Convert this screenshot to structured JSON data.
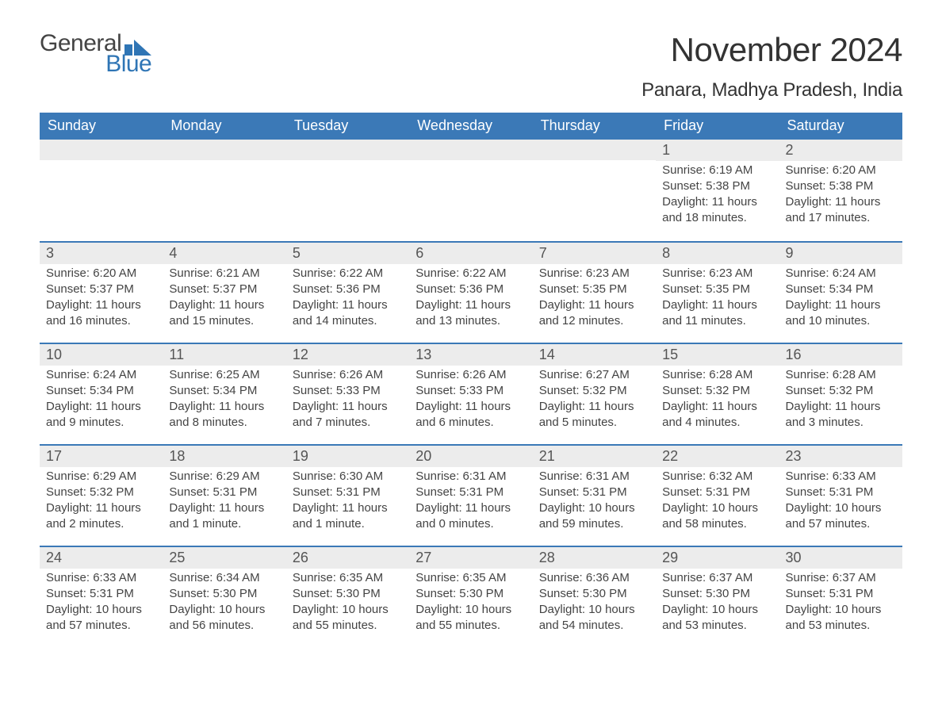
{
  "brand": {
    "word1": "General",
    "word2": "Blue",
    "icon_color": "#2f75b5",
    "text_color_1": "#444444",
    "text_color_2": "#2f75b5"
  },
  "title": "November 2024",
  "subtitle": "Panara, Madhya Pradesh, India",
  "colors": {
    "header_bg": "#3b79b7",
    "header_text": "#ffffff",
    "row_border": "#3b79b7",
    "daynum_bg": "#ececec",
    "body_text": "#444444",
    "page_bg": "#ffffff"
  },
  "day_names": [
    "Sunday",
    "Monday",
    "Tuesday",
    "Wednesday",
    "Thursday",
    "Friday",
    "Saturday"
  ],
  "weeks": [
    [
      {
        "empty": true
      },
      {
        "empty": true
      },
      {
        "empty": true
      },
      {
        "empty": true
      },
      {
        "empty": true
      },
      {
        "day": "1",
        "sunrise": "Sunrise: 6:19 AM",
        "sunset": "Sunset: 5:38 PM",
        "daylight": "Daylight: 11 hours and 18 minutes."
      },
      {
        "day": "2",
        "sunrise": "Sunrise: 6:20 AM",
        "sunset": "Sunset: 5:38 PM",
        "daylight": "Daylight: 11 hours and 17 minutes."
      }
    ],
    [
      {
        "day": "3",
        "sunrise": "Sunrise: 6:20 AM",
        "sunset": "Sunset: 5:37 PM",
        "daylight": "Daylight: 11 hours and 16 minutes."
      },
      {
        "day": "4",
        "sunrise": "Sunrise: 6:21 AM",
        "sunset": "Sunset: 5:37 PM",
        "daylight": "Daylight: 11 hours and 15 minutes."
      },
      {
        "day": "5",
        "sunrise": "Sunrise: 6:22 AM",
        "sunset": "Sunset: 5:36 PM",
        "daylight": "Daylight: 11 hours and 14 minutes."
      },
      {
        "day": "6",
        "sunrise": "Sunrise: 6:22 AM",
        "sunset": "Sunset: 5:36 PM",
        "daylight": "Daylight: 11 hours and 13 minutes."
      },
      {
        "day": "7",
        "sunrise": "Sunrise: 6:23 AM",
        "sunset": "Sunset: 5:35 PM",
        "daylight": "Daylight: 11 hours and 12 minutes."
      },
      {
        "day": "8",
        "sunrise": "Sunrise: 6:23 AM",
        "sunset": "Sunset: 5:35 PM",
        "daylight": "Daylight: 11 hours and 11 minutes."
      },
      {
        "day": "9",
        "sunrise": "Sunrise: 6:24 AM",
        "sunset": "Sunset: 5:34 PM",
        "daylight": "Daylight: 11 hours and 10 minutes."
      }
    ],
    [
      {
        "day": "10",
        "sunrise": "Sunrise: 6:24 AM",
        "sunset": "Sunset: 5:34 PM",
        "daylight": "Daylight: 11 hours and 9 minutes."
      },
      {
        "day": "11",
        "sunrise": "Sunrise: 6:25 AM",
        "sunset": "Sunset: 5:34 PM",
        "daylight": "Daylight: 11 hours and 8 minutes."
      },
      {
        "day": "12",
        "sunrise": "Sunrise: 6:26 AM",
        "sunset": "Sunset: 5:33 PM",
        "daylight": "Daylight: 11 hours and 7 minutes."
      },
      {
        "day": "13",
        "sunrise": "Sunrise: 6:26 AM",
        "sunset": "Sunset: 5:33 PM",
        "daylight": "Daylight: 11 hours and 6 minutes."
      },
      {
        "day": "14",
        "sunrise": "Sunrise: 6:27 AM",
        "sunset": "Sunset: 5:32 PM",
        "daylight": "Daylight: 11 hours and 5 minutes."
      },
      {
        "day": "15",
        "sunrise": "Sunrise: 6:28 AM",
        "sunset": "Sunset: 5:32 PM",
        "daylight": "Daylight: 11 hours and 4 minutes."
      },
      {
        "day": "16",
        "sunrise": "Sunrise: 6:28 AM",
        "sunset": "Sunset: 5:32 PM",
        "daylight": "Daylight: 11 hours and 3 minutes."
      }
    ],
    [
      {
        "day": "17",
        "sunrise": "Sunrise: 6:29 AM",
        "sunset": "Sunset: 5:32 PM",
        "daylight": "Daylight: 11 hours and 2 minutes."
      },
      {
        "day": "18",
        "sunrise": "Sunrise: 6:29 AM",
        "sunset": "Sunset: 5:31 PM",
        "daylight": "Daylight: 11 hours and 1 minute."
      },
      {
        "day": "19",
        "sunrise": "Sunrise: 6:30 AM",
        "sunset": "Sunset: 5:31 PM",
        "daylight": "Daylight: 11 hours and 1 minute."
      },
      {
        "day": "20",
        "sunrise": "Sunrise: 6:31 AM",
        "sunset": "Sunset: 5:31 PM",
        "daylight": "Daylight: 11 hours and 0 minutes."
      },
      {
        "day": "21",
        "sunrise": "Sunrise: 6:31 AM",
        "sunset": "Sunset: 5:31 PM",
        "daylight": "Daylight: 10 hours and 59 minutes."
      },
      {
        "day": "22",
        "sunrise": "Sunrise: 6:32 AM",
        "sunset": "Sunset: 5:31 PM",
        "daylight": "Daylight: 10 hours and 58 minutes."
      },
      {
        "day": "23",
        "sunrise": "Sunrise: 6:33 AM",
        "sunset": "Sunset: 5:31 PM",
        "daylight": "Daylight: 10 hours and 57 minutes."
      }
    ],
    [
      {
        "day": "24",
        "sunrise": "Sunrise: 6:33 AM",
        "sunset": "Sunset: 5:31 PM",
        "daylight": "Daylight: 10 hours and 57 minutes."
      },
      {
        "day": "25",
        "sunrise": "Sunrise: 6:34 AM",
        "sunset": "Sunset: 5:30 PM",
        "daylight": "Daylight: 10 hours and 56 minutes."
      },
      {
        "day": "26",
        "sunrise": "Sunrise: 6:35 AM",
        "sunset": "Sunset: 5:30 PM",
        "daylight": "Daylight: 10 hours and 55 minutes."
      },
      {
        "day": "27",
        "sunrise": "Sunrise: 6:35 AM",
        "sunset": "Sunset: 5:30 PM",
        "daylight": "Daylight: 10 hours and 55 minutes."
      },
      {
        "day": "28",
        "sunrise": "Sunrise: 6:36 AM",
        "sunset": "Sunset: 5:30 PM",
        "daylight": "Daylight: 10 hours and 54 minutes."
      },
      {
        "day": "29",
        "sunrise": "Sunrise: 6:37 AM",
        "sunset": "Sunset: 5:30 PM",
        "daylight": "Daylight: 10 hours and 53 minutes."
      },
      {
        "day": "30",
        "sunrise": "Sunrise: 6:37 AM",
        "sunset": "Sunset: 5:31 PM",
        "daylight": "Daylight: 10 hours and 53 minutes."
      }
    ]
  ]
}
